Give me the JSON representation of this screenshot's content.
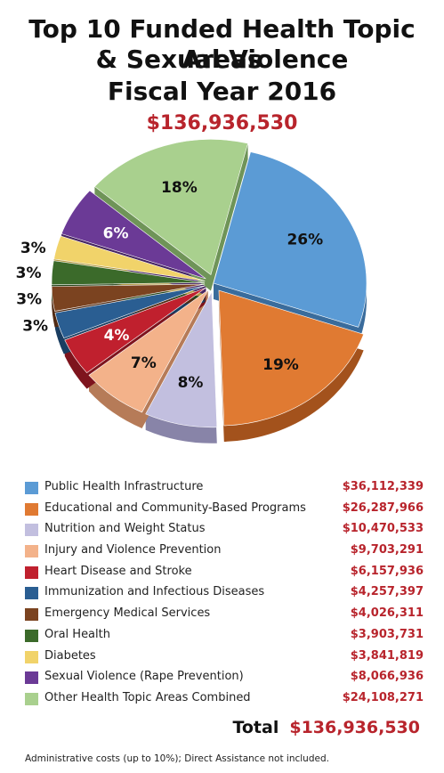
{
  "title_lines": [
    "Top 10 Funded Health Topic Areas",
    "& Sexual Violence",
    "Fiscal Year 2016"
  ],
  "total_amount": "$136,936,530",
  "total_label": "Total",
  "footnote": "Administrative costs (up to 10%); Direct Assistance not included.",
  "chart_data": {
    "type": "pie",
    "title": "Top 10 Funded Health Topic Areas & Sexual Violence Fiscal Year 2016",
    "total": 136936530,
    "slices": [
      {
        "name": "Public Health Infrastructure",
        "value": 36112339,
        "amount": "$36,112,339",
        "percent_label": "26%",
        "color": "#5b9bd5",
        "side": "#3a6c9c",
        "label_color": "#111111",
        "exploded": false
      },
      {
        "name": "Educational and Community-Based Programs",
        "value": 26287966,
        "amount": "$26,287,966",
        "percent_label": "19%",
        "color": "#e07a32",
        "side": "#a3521c",
        "label_color": "#111111",
        "exploded": true
      },
      {
        "name": "Nutrition and Weight Status",
        "value": 10470533,
        "amount": "$10,470,533",
        "percent_label": "8%",
        "color": "#c2bfdf",
        "side": "#8884a8",
        "label_color": "#111111",
        "exploded": true
      },
      {
        "name": "Injury and Violence Prevention",
        "value": 9703291,
        "amount": "$9,703,291",
        "percent_label": "7%",
        "color": "#f3b28a",
        "side": "#b67b58",
        "label_color": "#111111",
        "exploded": true
      },
      {
        "name": "Heart Disease and Stroke",
        "value": 6157936,
        "amount": "$6,157,936",
        "percent_label": "4%",
        "color": "#c0202e",
        "side": "#7e141d",
        "label_color": "#ffffff",
        "exploded": true
      },
      {
        "name": "Immunization and Infectious Diseases",
        "value": 4257397,
        "amount": "$4,257,397",
        "percent_label": "3%",
        "color": "#2a5e92",
        "side": "#1a3d61",
        "label_color": "#111111",
        "exploded": true
      },
      {
        "name": "Emergency Medical Services",
        "value": 4026311,
        "amount": "$4,026,311",
        "percent_label": "3%",
        "color": "#7b4320",
        "side": "#512b14",
        "label_color": "#111111",
        "exploded": true
      },
      {
        "name": "Oral Health",
        "value": 3903731,
        "amount": "$3,903,731",
        "percent_label": "3%",
        "color": "#3b6a2a",
        "side": "#26461b",
        "label_color": "#111111",
        "exploded": true
      },
      {
        "name": "Diabetes",
        "value": 3841819,
        "amount": "$3,841,819",
        "percent_label": "3%",
        "color": "#f1d36a",
        "side": "#b29a45",
        "label_color": "#111111",
        "exploded": true
      },
      {
        "name": "Sexual Violence (Rape Prevention)",
        "value": 8066936,
        "amount": "$8,066,936",
        "percent_label": "6%",
        "color": "#6b3a96",
        "side": "#472563",
        "label_color": "#ffffff",
        "exploded": true
      },
      {
        "name": "Other Health Topic Areas Combined",
        "value": 24108271,
        "amount": "$24,108,271",
        "percent_label": "18%",
        "color": "#a9d08e",
        "side": "#6f9458",
        "label_color": "#111111",
        "exploded": true
      }
    ]
  }
}
